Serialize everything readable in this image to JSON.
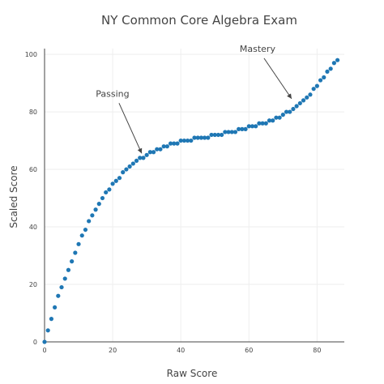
{
  "chart_data": {
    "type": "scatter",
    "title": "NY Common Core Algebra Exam",
    "xlabel": "Raw Score",
    "ylabel": "Scaled Score",
    "xlim": [
      0,
      88
    ],
    "ylim": [
      0,
      102
    ],
    "x_ticks": [
      0,
      20,
      40,
      60,
      80
    ],
    "y_ticks": [
      0,
      20,
      40,
      60,
      80,
      100
    ],
    "grid": true,
    "legend": "none",
    "marker_color": "#1f77b4",
    "series": [
      {
        "x": [
          0,
          1,
          2,
          3,
          4,
          5,
          6,
          7,
          8,
          9,
          10,
          11,
          12,
          13,
          14,
          15,
          16,
          17,
          18,
          19,
          20,
          21,
          22,
          23,
          24,
          25,
          26,
          27,
          28,
          29,
          30,
          31,
          32,
          33,
          34,
          35,
          36,
          37,
          38,
          39,
          40,
          41,
          42,
          43,
          44,
          45,
          46,
          47,
          48,
          49,
          50,
          51,
          52,
          53,
          54,
          55,
          56,
          57,
          58,
          59,
          60,
          61,
          62,
          63,
          64,
          65,
          66,
          67,
          68,
          69,
          70,
          71,
          72,
          73,
          74,
          75,
          76,
          77,
          78,
          79,
          80,
          81,
          82,
          83,
          84,
          85,
          86
        ],
        "y": [
          0,
          4,
          8,
          12,
          16,
          19,
          22,
          25,
          28,
          31,
          34,
          37,
          39,
          42,
          44,
          46,
          48,
          50,
          52,
          53,
          55,
          56,
          57,
          59,
          60,
          61,
          62,
          63,
          64,
          64,
          65,
          66,
          66,
          67,
          67,
          68,
          68,
          69,
          69,
          69,
          70,
          70,
          70,
          70,
          71,
          71,
          71,
          71,
          71,
          72,
          72,
          72,
          72,
          73,
          73,
          73,
          73,
          74,
          74,
          74,
          75,
          75,
          75,
          76,
          76,
          76,
          77,
          77,
          78,
          78,
          79,
          80,
          80,
          81,
          82,
          83,
          84,
          85,
          86,
          88,
          89,
          91,
          92,
          94,
          95,
          97,
          98
        ]
      }
    ],
    "annotations": [
      {
        "text": "Passing",
        "arrow_to": [
          29,
          65
        ]
      },
      {
        "text": "Mastery",
        "arrow_to": [
          73,
          84
        ]
      }
    ]
  }
}
